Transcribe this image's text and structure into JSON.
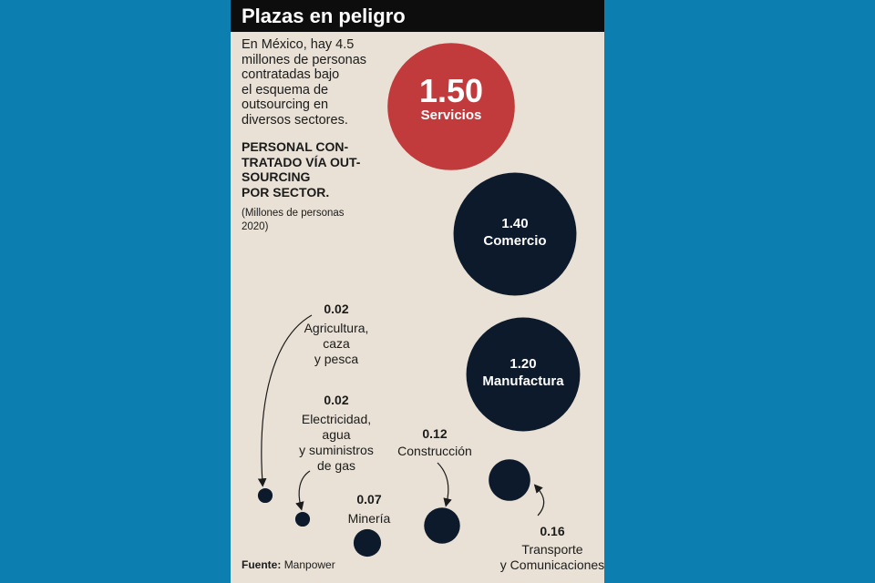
{
  "chart_data": {
    "type": "bubble",
    "title": "Plazas en peligro",
    "description": "En México, hay 4.5\nmillones de personas\ncontratadas bajo\nel esquema de\noutsourcing en\ndiversos sectores.",
    "subtitle": "PERSONAL CON-\nTRATADO VÍA OUT-\nSOURCING\nPOR SECTOR.",
    "unit_note": "(Millones de personas\n2020)",
    "categories": [
      "Servicios",
      "Comercio",
      "Manufactura",
      "Agricultura,\ncaza\ny pesca",
      "Electricidad,\nagua\ny suministros\nde gas",
      "Construcción",
      "Minería",
      "Transporte\ny Comunicaciones"
    ],
    "values": [
      1.5,
      1.4,
      1.2,
      0.02,
      0.02,
      0.12,
      0.07,
      0.16
    ],
    "value_labels": [
      "1.50",
      "1.40",
      "1.20",
      "0.02",
      "0.02",
      "0.12",
      "0.07",
      "0.16"
    ],
    "colors": [
      "#c23b3c",
      "#0c1a2c",
      "#0c1a2c",
      "#0c1a2c",
      "#0c1a2c",
      "#0c1a2c",
      "#0c1a2c",
      "#0c1a2c"
    ],
    "source_label": "Fuente:",
    "source": "Manpower"
  }
}
